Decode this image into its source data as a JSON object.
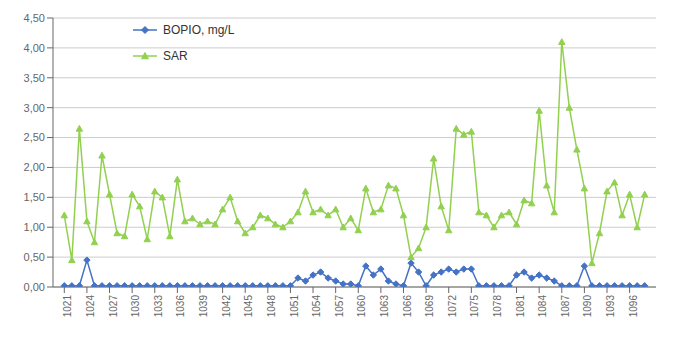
{
  "chart_data": {
    "type": "line",
    "x": [
      1021,
      1022,
      1023,
      1024,
      1025,
      1026,
      1027,
      1028,
      1029,
      1030,
      1031,
      1032,
      1033,
      1034,
      1035,
      1036,
      1037,
      1038,
      1039,
      1040,
      1041,
      1042,
      1043,
      1044,
      1045,
      1046,
      1047,
      1048,
      1049,
      1050,
      1051,
      1052,
      1053,
      1054,
      1055,
      1056,
      1057,
      1058,
      1059,
      1060,
      1061,
      1062,
      1063,
      1064,
      1065,
      1066,
      1067,
      1068,
      1069,
      1070,
      1071,
      1072,
      1073,
      1074,
      1075,
      1076,
      1077,
      1078,
      1079,
      1080,
      1081,
      1082,
      1083,
      1084,
      1085,
      1086,
      1087,
      1088,
      1089,
      1090,
      1091,
      1092,
      1093,
      1094,
      1095,
      1096,
      1097,
      1098
    ],
    "series": [
      {
        "name": "BOPIO, mg/L",
        "color": "#4472c4",
        "marker": "diamond",
        "values": [
          0.02,
          0.02,
          0.02,
          0.45,
          0.02,
          0.02,
          0.02,
          0.02,
          0.02,
          0.02,
          0.02,
          0.02,
          0.02,
          0.02,
          0.02,
          0.02,
          0.02,
          0.02,
          0.02,
          0.02,
          0.02,
          0.02,
          0.02,
          0.02,
          0.02,
          0.02,
          0.02,
          0.02,
          0.02,
          0.02,
          0.02,
          0.15,
          0.1,
          0.2,
          0.25,
          0.15,
          0.1,
          0.05,
          0.05,
          0.02,
          0.35,
          0.2,
          0.3,
          0.1,
          0.05,
          0.02,
          0.4,
          0.25,
          0.02,
          0.2,
          0.25,
          0.3,
          0.25,
          0.3,
          0.3,
          0.02,
          0.02,
          0.02,
          0.02,
          0.02,
          0.2,
          0.25,
          0.15,
          0.2,
          0.15,
          0.1,
          0.02,
          0.02,
          0.02,
          0.35,
          0.02,
          0.02,
          0.02,
          0.02,
          0.02,
          0.02,
          0.02,
          0.02
        ]
      },
      {
        "name": "SAR",
        "color": "#92d050",
        "marker": "triangle",
        "values": [
          1.2,
          0.45,
          2.65,
          1.1,
          0.75,
          2.2,
          1.55,
          0.9,
          0.85,
          1.55,
          1.35,
          0.8,
          1.6,
          1.5,
          0.85,
          1.8,
          1.1,
          1.15,
          1.05,
          1.1,
          1.05,
          1.3,
          1.5,
          1.1,
          0.9,
          1.0,
          1.2,
          1.15,
          1.05,
          1.0,
          1.1,
          1.25,
          1.6,
          1.25,
          1.3,
          1.2,
          1.3,
          1.0,
          1.15,
          0.95,
          1.65,
          1.25,
          1.3,
          1.7,
          1.65,
          1.2,
          0.5,
          0.65,
          1.0,
          2.15,
          1.35,
          0.95,
          2.65,
          2.55,
          2.6,
          1.25,
          1.2,
          1.0,
          1.2,
          1.25,
          1.05,
          1.45,
          1.4,
          2.95,
          1.7,
          1.25,
          4.1,
          3.0,
          2.3,
          1.65,
          0.4,
          0.9,
          1.6,
          1.75,
          1.2,
          1.55,
          1.0,
          1.55
        ]
      }
    ],
    "xlim": [
      1019.5,
      1099.5
    ],
    "xticks": [
      1021,
      1024,
      1027,
      1030,
      1033,
      1036,
      1039,
      1042,
      1045,
      1048,
      1051,
      1054,
      1057,
      1060,
      1063,
      1066,
      1069,
      1072,
      1075,
      1078,
      1081,
      1084,
      1087,
      1090,
      1093,
      1096
    ],
    "ylim": [
      0,
      4.5
    ],
    "yticks": [
      {
        "value": 0,
        "label": "0,00"
      },
      {
        "value": 0.5,
        "label": "0,50"
      },
      {
        "value": 1,
        "label": "1,00"
      },
      {
        "value": 1.5,
        "label": "1,50"
      },
      {
        "value": 2,
        "label": "2,00"
      },
      {
        "value": 2.5,
        "label": "2,50"
      },
      {
        "value": 3,
        "label": "3,00"
      },
      {
        "value": 3.5,
        "label": "3,50"
      },
      {
        "value": 4,
        "label": "4,00"
      },
      {
        "value": 4.5,
        "label": "4,50"
      }
    ],
    "grid": true,
    "legend": "upper left"
  }
}
